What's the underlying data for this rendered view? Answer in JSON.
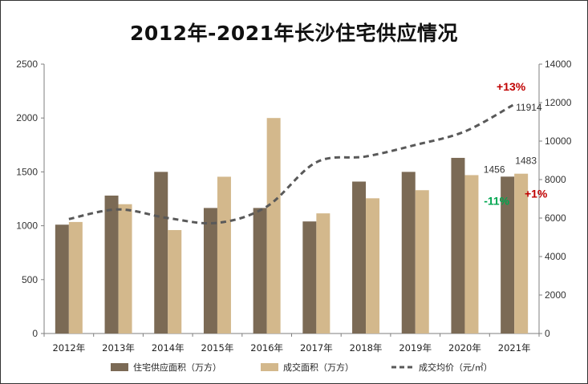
{
  "chart_data": {
    "type": "bar",
    "title": "2012年-2021年长沙住宅供应情况",
    "categories": [
      "2012年",
      "2013年",
      "2014年",
      "2015年",
      "2016年",
      "2017年",
      "2018年",
      "2019年",
      "2020年",
      "2021年"
    ],
    "series": [
      {
        "name": "住宅供应面积（万方）",
        "axis": "left",
        "kind": "bar",
        "color": "#7b6a55",
        "values": [
          1010,
          1280,
          1500,
          1165,
          1165,
          1040,
          1410,
          1500,
          1630,
          1456
        ]
      },
      {
        "name": "成交面积（万方）",
        "axis": "left",
        "kind": "bar",
        "color": "#d3b88c",
        "values": [
          1035,
          1200,
          960,
          1455,
          2000,
          1115,
          1255,
          1330,
          1470,
          1483
        ]
      },
      {
        "name": "成交均价（元/㎡）",
        "axis": "right",
        "kind": "line",
        "style": "dashed",
        "color": "#595959",
        "values": [
          5950,
          6450,
          6000,
          5750,
          6600,
          8900,
          9200,
          9800,
          10500,
          11914
        ]
      }
    ],
    "left_axis": {
      "min": 0,
      "max": 2500,
      "ticks": [
        0,
        500,
        1000,
        1500,
        2000,
        2500
      ]
    },
    "right_axis": {
      "min": 0,
      "max": 14000,
      "ticks": [
        0,
        2000,
        4000,
        6000,
        8000,
        10000,
        12000,
        14000
      ]
    },
    "data_labels": [
      {
        "text": "1456",
        "series": 0,
        "index": 9
      },
      {
        "text": "1483",
        "series": 1,
        "index": 9
      },
      {
        "text": "11914",
        "series": 2,
        "index": 9
      }
    ],
    "annotations": [
      {
        "text": "+13%",
        "color": "#c00000"
      },
      {
        "text": "-11%",
        "color": "#00a650"
      },
      {
        "text": "+1%",
        "color": "#c00000"
      }
    ],
    "grid": false,
    "legend_position": "bottom"
  }
}
